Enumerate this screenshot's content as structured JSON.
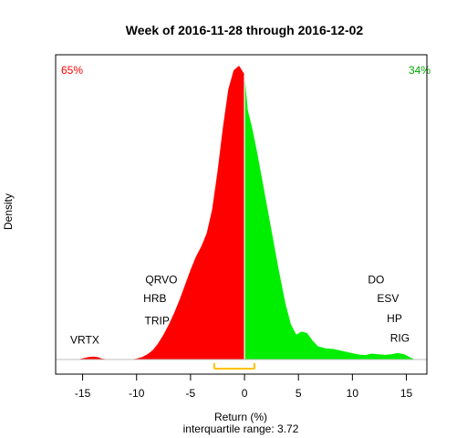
{
  "chart_data": {
    "type": "area",
    "title": "Week of 2016-11-28 through 2016-12-02",
    "xlabel": "Return (%)",
    "ylabel": "Density",
    "subtitle": "interquartile range: 3.72",
    "xlim": [
      -17.5,
      16.9
    ],
    "ylim": [
      0,
      1
    ],
    "xticks": [
      -15,
      -10,
      -5,
      0,
      5,
      10,
      15
    ],
    "xtick_labels": [
      "-15",
      "-10",
      "-5",
      "0",
      "5",
      "10",
      "15"
    ],
    "grid": false,
    "colors": {
      "negative": "#ff0000",
      "positive": "#00ee00",
      "iqr": "#ffc000",
      "baseline": "#bebebe",
      "divider": "#ffffff"
    },
    "percent_negative": "65%",
    "percent_positive": "34%",
    "iqr": {
      "low": -2.8,
      "high": 0.92
    },
    "series": [
      {
        "values": [
          [
            -15.5,
            0.0
          ],
          [
            -15.0,
            0.004
          ],
          [
            -14.5,
            0.008
          ],
          [
            -14.0,
            0.01
          ],
          [
            -13.6,
            0.008
          ],
          [
            -13.2,
            0.003
          ],
          [
            -12.8,
            0.001
          ],
          [
            -10.6,
            0.0
          ],
          [
            -10.0,
            0.003
          ],
          [
            -9.5,
            0.008
          ],
          [
            -9.0,
            0.018
          ],
          [
            -8.5,
            0.032
          ],
          [
            -8.0,
            0.055
          ],
          [
            -7.5,
            0.085
          ],
          [
            -7.0,
            0.12
          ],
          [
            -6.5,
            0.16
          ],
          [
            -6.0,
            0.205
          ],
          [
            -5.5,
            0.255
          ],
          [
            -5.0,
            0.305
          ],
          [
            -4.5,
            0.35
          ],
          [
            -4.0,
            0.385
          ],
          [
            -3.5,
            0.43
          ],
          [
            -3.0,
            0.51
          ],
          [
            -2.5,
            0.64
          ],
          [
            -2.0,
            0.79
          ],
          [
            -1.5,
            0.92
          ],
          [
            -1.0,
            0.985
          ],
          [
            -0.5,
            1.0
          ],
          [
            0.0,
            0.97
          ],
          [
            0.3,
            0.85
          ],
          [
            0.7,
            0.79
          ],
          [
            1.2,
            0.7
          ],
          [
            1.8,
            0.58
          ],
          [
            2.5,
            0.44
          ],
          [
            3.2,
            0.3
          ],
          [
            3.8,
            0.19
          ],
          [
            4.3,
            0.12
          ],
          [
            4.8,
            0.085
          ],
          [
            5.3,
            0.095
          ],
          [
            5.8,
            0.09
          ],
          [
            6.3,
            0.065
          ],
          [
            6.8,
            0.045
          ],
          [
            7.5,
            0.038
          ],
          [
            8.2,
            0.036
          ],
          [
            9.0,
            0.03
          ],
          [
            9.8,
            0.023
          ],
          [
            10.6,
            0.017
          ],
          [
            11.2,
            0.015
          ],
          [
            11.8,
            0.02
          ],
          [
            12.4,
            0.018
          ],
          [
            13.0,
            0.016
          ],
          [
            13.6,
            0.018
          ],
          [
            14.2,
            0.022
          ],
          [
            14.8,
            0.018
          ],
          [
            15.3,
            0.008
          ],
          [
            15.8,
            0.0
          ]
        ]
      }
    ],
    "annotations": [
      {
        "text": "VRTX",
        "x": -14.8,
        "y": 0.055
      },
      {
        "text": "QRVO",
        "x": -7.7,
        "y": 0.26
      },
      {
        "text": "HRB",
        "x": -8.3,
        "y": 0.195
      },
      {
        "text": "TRIP",
        "x": -8.1,
        "y": 0.12
      },
      {
        "text": "DO",
        "x": 12.2,
        "y": 0.26
      },
      {
        "text": "ESV",
        "x": 13.3,
        "y": 0.195
      },
      {
        "text": "HP",
        "x": 13.9,
        "y": 0.128
      },
      {
        "text": "RIG",
        "x": 14.4,
        "y": 0.06
      }
    ]
  }
}
